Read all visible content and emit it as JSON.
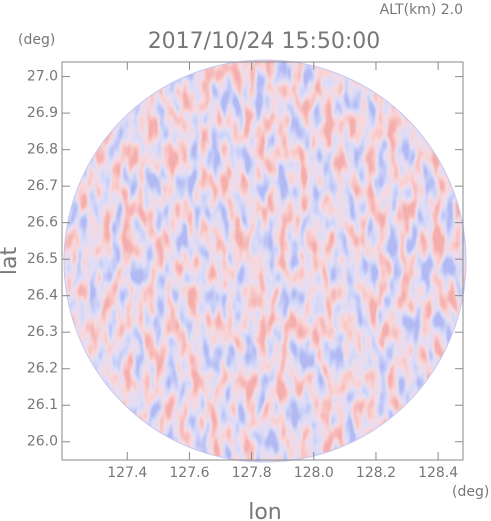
{
  "chart_data": {
    "type": "radar-ppi",
    "title": "2017/10/24 15:50:00",
    "subtitle": "ALT(km) 2.0",
    "x_label": "lon",
    "x_unit": "(deg)",
    "y_label": "lat",
    "y_unit": "(deg)",
    "xlim": [
      127.19,
      128.48
    ],
    "ylim": [
      25.95,
      27.04
    ],
    "xticks": [
      127.4,
      127.6,
      127.8,
      {
        "value": 128.0,
        "label": "128.0"
      },
      128.2,
      128.4
    ],
    "yticks": [
      {
        "value": 26.0,
        "label": "26.0"
      },
      26.1,
      26.2,
      26.3,
      26.4,
      26.5,
      26.6,
      26.7,
      26.8,
      26.9,
      {
        "value": 27.0,
        "label": "27.0"
      }
    ]
  }
}
